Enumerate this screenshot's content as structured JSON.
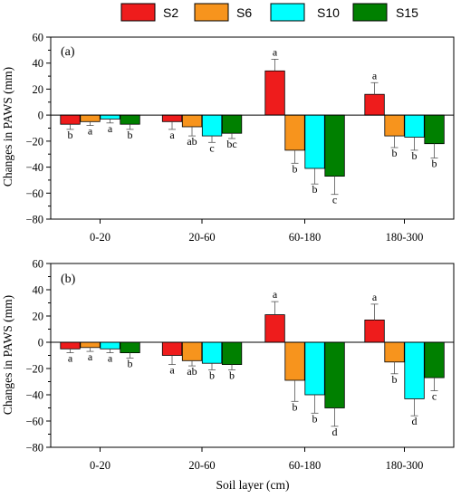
{
  "chart_data": {
    "type": "bar",
    "legend": {
      "placement": "top",
      "entries": [
        {
          "name": "S2",
          "color": "#ee1c1c"
        },
        {
          "name": "S6",
          "color": "#f7941d"
        },
        {
          "name": "S10",
          "color": "#00ffff"
        },
        {
          "name": "S15",
          "color": "#008000"
        }
      ]
    },
    "xlabel": "Soil layer (cm)",
    "categories": [
      "0-20",
      "20-60",
      "60-180",
      "180-300"
    ],
    "panels": [
      {
        "label": "(a)",
        "ylabel": "Changes in PAWS (mm)",
        "ylim": [
          -80,
          60
        ],
        "yticks": [
          "60",
          "40",
          "20",
          "0",
          "−20",
          "−40",
          "−60",
          "−80"
        ],
        "series": [
          {
            "name": "S2",
            "values": [
              -7,
              -5,
              34,
              16
            ],
            "errors": [
              4,
              6,
              9,
              9
            ],
            "sig": [
              "b",
              "a",
              "a",
              "a"
            ]
          },
          {
            "name": "S6",
            "values": [
              -5,
              -9,
              -27,
              -16
            ],
            "errors": [
              3,
              7,
              10,
              9
            ],
            "sig": [
              "a",
              "ab",
              "b",
              "b"
            ]
          },
          {
            "name": "S10",
            "values": [
              -3,
              -16,
              -41,
              -17
            ],
            "errors": [
              3,
              5,
              12,
              10
            ],
            "sig": [
              "a",
              "c",
              "b",
              "b"
            ]
          },
          {
            "name": "S15",
            "values": [
              -7,
              -14,
              -47,
              -22
            ],
            "errors": [
              4,
              4,
              14,
              11
            ],
            "sig": [
              "b",
              "bc",
              "c",
              "b"
            ]
          }
        ]
      },
      {
        "label": "(b)",
        "ylabel": "Changes in PAWS (mm)",
        "ylim": [
          -80,
          60
        ],
        "yticks": [
          "60",
          "40",
          "20",
          "0",
          "−20",
          "−40",
          "−60",
          "−80"
        ],
        "series": [
          {
            "name": "S2",
            "values": [
              -5,
              -10,
              21,
              17
            ],
            "errors": [
              3,
              7,
              10,
              12
            ],
            "sig": [
              "a",
              "a",
              "a",
              "a"
            ]
          },
          {
            "name": "S6",
            "values": [
              -4,
              -14,
              -29,
              -15
            ],
            "errors": [
              3,
              4,
              16,
              9
            ],
            "sig": [
              "a",
              "ab",
              "b",
              "b"
            ]
          },
          {
            "name": "S10",
            "values": [
              -5,
              -16,
              -40,
              -43
            ],
            "errors": [
              3,
              5,
              14,
              13
            ],
            "sig": [
              "a",
              "b",
              "b",
              "d"
            ]
          },
          {
            "name": "S15",
            "values": [
              -8,
              -17,
              -50,
              -27
            ],
            "errors": [
              4,
              4,
              14,
              10
            ],
            "sig": [
              "b",
              "b",
              "d",
              "c"
            ]
          }
        ]
      }
    ]
  }
}
